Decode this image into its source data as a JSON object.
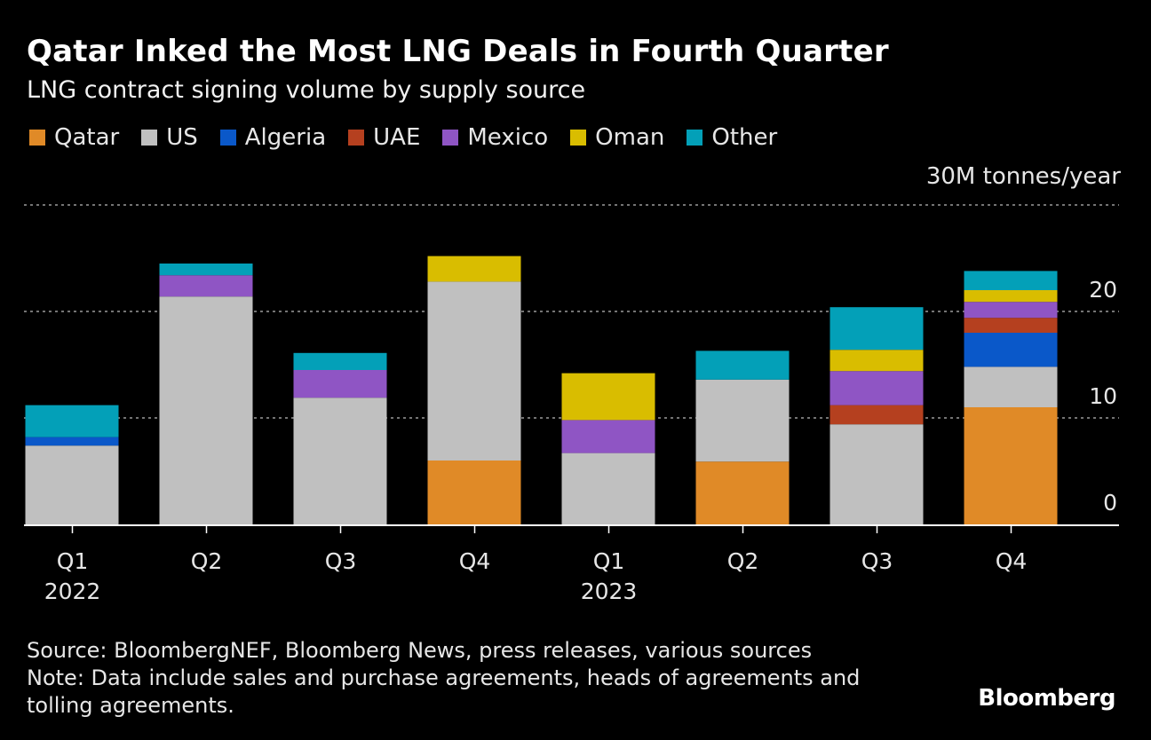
{
  "header": {
    "title": "Qatar Inked the Most LNG Deals in Fourth Quarter",
    "subtitle": "LNG contract signing volume by supply source"
  },
  "colors": {
    "Qatar": "#e08a27",
    "US": "#c0c0c0",
    "Algeria": "#0a58c9",
    "UAE": "#b5401f",
    "Mexico": "#8f55c4",
    "Oman": "#d9bd00",
    "Other": "#03a0b8"
  },
  "chart_data": {
    "type": "bar",
    "stacked": true,
    "title": "Qatar Inked the Most LNG Deals in Fourth Quarter",
    "subtitle": "LNG contract signing volume by supply source",
    "unit_label": "30M tonnes/year",
    "categories": [
      "Q1",
      "Q2",
      "Q3",
      "Q4",
      "Q1",
      "Q2",
      "Q3",
      "Q4"
    ],
    "year_labels": [
      "2022",
      "",
      "",
      "",
      "2023",
      "",
      "",
      ""
    ],
    "ylim": [
      0,
      30
    ],
    "yticks": [
      0,
      10,
      20,
      30
    ],
    "ytick_labels": [
      "0",
      "10",
      "20",
      "30M tonnes/year"
    ],
    "legend": [
      "Qatar",
      "US",
      "Algeria",
      "UAE",
      "Mexico",
      "Oman",
      "Other"
    ],
    "series": [
      {
        "name": "Qatar",
        "values": [
          0,
          0,
          0,
          6.0,
          0,
          5.9,
          0,
          11.0
        ]
      },
      {
        "name": "US",
        "values": [
          7.4,
          21.4,
          11.9,
          16.8,
          6.7,
          7.7,
          9.4,
          3.8
        ]
      },
      {
        "name": "Algeria",
        "values": [
          0.8,
          0,
          0,
          0,
          0,
          0,
          0,
          3.2
        ]
      },
      {
        "name": "UAE",
        "values": [
          0,
          0,
          0,
          0,
          0,
          0,
          1.8,
          1.4
        ]
      },
      {
        "name": "Mexico",
        "values": [
          0,
          2.0,
          2.6,
          0,
          3.1,
          0,
          3.2,
          1.5
        ]
      },
      {
        "name": "Oman",
        "values": [
          0,
          0,
          0,
          2.4,
          4.4,
          0,
          2.0,
          1.1
        ]
      },
      {
        "name": "Other",
        "values": [
          3.0,
          1.1,
          1.6,
          0,
          0,
          2.7,
          4.0,
          1.8
        ]
      }
    ]
  },
  "footer": {
    "source": "Source: BloombergNEF, Bloomberg News, press releases, various sources",
    "note_line1": "Note: Data include sales and purchase agreements, heads of agreements and",
    "note_line2": "tolling agreements.",
    "brand": "Bloomberg"
  }
}
